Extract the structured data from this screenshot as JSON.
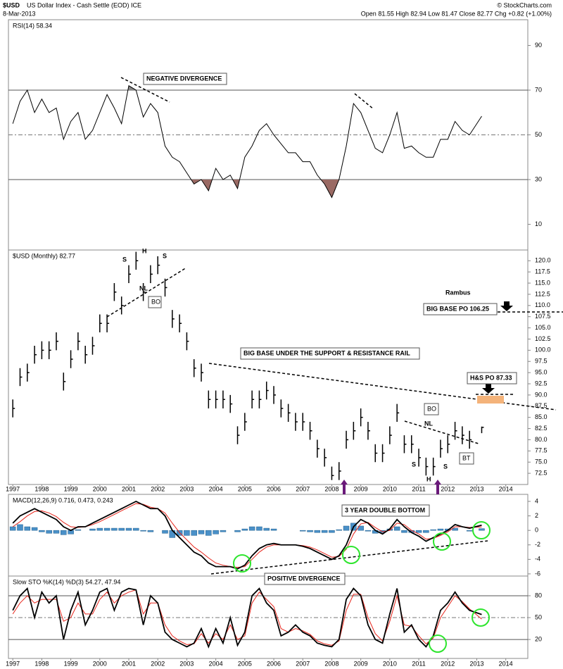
{
  "header": {
    "symbol": "$USD",
    "name": "US Dollar Index - Cash Settle (EOD) ICE",
    "date": "8-Mar-2013",
    "quote": "Open 81.55 High 82.94 Low 81.47 Close 82.77 Chg +0.82 (+1.00%)",
    "copyright": "© StockCharts.com"
  },
  "chart_data": [
    {
      "type": "line",
      "title": "RSI(14) 58.34",
      "color": "#000000",
      "levels": [
        30,
        50,
        70
      ],
      "ylim": [
        -1.5,
        101.5
      ],
      "yticks": [
        10,
        30,
        50,
        70,
        90
      ],
      "xlim": [
        1996.85,
        2014.76
      ],
      "annotations": [
        "NEGATIVE DIVERGENCE"
      ],
      "x": [
        1997,
        1997.25,
        1997.5,
        1997.75,
        1998,
        1998.25,
        1998.5,
        1998.75,
        1999,
        1999.25,
        1999.5,
        1999.75,
        2000,
        2000.25,
        2000.5,
        2000.75,
        2001,
        2001.25,
        2001.5,
        2001.75,
        2002,
        2002.25,
        2002.5,
        2002.75,
        2003,
        2003.25,
        2003.5,
        2003.75,
        2004,
        2004.25,
        2004.5,
        2004.75,
        2005,
        2005.25,
        2005.5,
        2005.75,
        2006,
        2006.25,
        2006.5,
        2006.75,
        2007,
        2007.25,
        2007.5,
        2007.75,
        2008,
        2008.25,
        2008.5,
        2008.75,
        2009,
        2009.25,
        2009.5,
        2009.75,
        2010,
        2010.25,
        2010.5,
        2010.75,
        2011,
        2011.25,
        2011.5,
        2011.75,
        2012,
        2012.25,
        2012.5,
        2012.75,
        2013.17
      ],
      "values": [
        55,
        65,
        70,
        60,
        66,
        60,
        62,
        48,
        56,
        60,
        48,
        52,
        60,
        68,
        62,
        55,
        72,
        70,
        58,
        64,
        60,
        45,
        40,
        38,
        33,
        28,
        30,
        25,
        35,
        30,
        32,
        26,
        40,
        45,
        52,
        55,
        50,
        46,
        42,
        42,
        38,
        38,
        32,
        28,
        22,
        30,
        45,
        64,
        60,
        52,
        44,
        42,
        50,
        60,
        44,
        45,
        42,
        40,
        40,
        48,
        48,
        56,
        52,
        50,
        58.34
      ]
    },
    {
      "type": "ohlc",
      "title": "$USD (Monthly) 82.77",
      "color": "#000000",
      "ylim": [
        70,
        122.4
      ],
      "xlim": [
        1996.85,
        2014.76
      ],
      "yticks": [
        {
          "value": 72.5,
          "label": "72.5"
        },
        {
          "value": 75,
          "label": "75.0"
        },
        {
          "value": 77.5,
          "label": "77.5"
        },
        {
          "value": 80,
          "label": "80.0"
        },
        {
          "value": 82.5,
          "label": "82.5"
        },
        {
          "value": 85,
          "label": "85.0"
        },
        {
          "value": 87.5,
          "label": "87.5"
        },
        {
          "value": 90,
          "label": "90.0"
        },
        {
          "value": 92.5,
          "label": "92.5"
        },
        {
          "value": 95,
          "label": "95.0"
        },
        {
          "value": 97.5,
          "label": "97.5"
        },
        {
          "value": 100,
          "label": "100.0"
        },
        {
          "value": 102.5,
          "label": "102.5"
        },
        {
          "value": 105,
          "label": "105.0"
        },
        {
          "value": 107.5,
          "label": "107.5"
        },
        {
          "value": 110,
          "label": "110.0"
        },
        {
          "value": 112.5,
          "label": "112.5"
        },
        {
          "value": 115,
          "label": "115.0"
        },
        {
          "value": 117.5,
          "label": "117.5"
        },
        {
          "value": 120,
          "label": "120.0"
        }
      ],
      "xticks": [
        1997,
        1998,
        1999,
        2000,
        2001,
        2002,
        2003,
        2004,
        2005,
        2006,
        2007,
        2008,
        2009,
        2010,
        2011,
        2012,
        2013,
        2014
      ],
      "annotations": [
        "BIG BASE UNDER THE SUPPORT & RESISTANCE RAIL",
        "H&S PO 87.33",
        "Rambus",
        "BIG BASE PO 106.25",
        "BO",
        "NL",
        "S",
        "H",
        "S",
        "BO",
        "NL",
        "S",
        "H",
        "S",
        "BT",
        "3 YEAR DOUBLE BOTTOM"
      ],
      "x": [
        1997,
        1997.25,
        1997.5,
        1997.75,
        1998,
        1998.25,
        1998.5,
        1998.75,
        1999,
        1999.25,
        1999.5,
        1999.75,
        2000,
        2000.25,
        2000.5,
        2000.75,
        2001,
        2001.25,
        2001.5,
        2001.75,
        2002,
        2002.25,
        2002.5,
        2002.75,
        2003,
        2003.25,
        2003.5,
        2003.75,
        2004,
        2004.25,
        2004.5,
        2004.75,
        2005,
        2005.25,
        2005.5,
        2005.75,
        2006,
        2006.25,
        2006.5,
        2006.75,
        2007,
        2007.25,
        2007.5,
        2007.75,
        2008,
        2008.25,
        2008.5,
        2008.75,
        2009,
        2009.25,
        2009.5,
        2009.75,
        2010,
        2010.25,
        2010.5,
        2010.75,
        2011,
        2011.25,
        2011.5,
        2011.75,
        2012,
        2012.25,
        2012.5,
        2012.75,
        2013.17
      ],
      "high": [
        89,
        96,
        97,
        101,
        102,
        102,
        104,
        95,
        100,
        104,
        101,
        103,
        108,
        108,
        115,
        112,
        119,
        122,
        115,
        119,
        121,
        116,
        109,
        108,
        104,
        98,
        97,
        91,
        91,
        91,
        90,
        83,
        86,
        91,
        91,
        93,
        92,
        89,
        88,
        86,
        86,
        84,
        80,
        78,
        74,
        75,
        82,
        84,
        87,
        84,
        79,
        79,
        83,
        88,
        81,
        81,
        78,
        76,
        76,
        80,
        81,
        84,
        83,
        82,
        82.94
      ],
      "low": [
        85,
        92,
        93,
        97,
        98,
        98,
        100,
        91,
        96,
        100,
        97,
        99,
        104,
        104,
        111,
        108,
        115,
        118,
        111,
        115,
        117,
        112,
        105,
        104,
        100,
        94,
        93,
        87,
        87,
        87,
        86,
        79,
        82,
        87,
        87,
        89,
        88,
        85,
        84,
        82,
        82,
        80,
        76,
        74,
        71,
        71,
        78,
        80,
        83,
        80,
        75,
        75,
        79,
        84,
        77,
        77,
        74,
        72,
        72,
        76,
        77,
        80,
        79,
        78,
        81.47
      ],
      "close": [
        87,
        94,
        95,
        99,
        100,
        100,
        102,
        93,
        98,
        102,
        99,
        101,
        106,
        106,
        113,
        110,
        117,
        120,
        113,
        117,
        119,
        114,
        107,
        106,
        102,
        96,
        95,
        89,
        89,
        89,
        88,
        81,
        84,
        89,
        89,
        91,
        90,
        87,
        86,
        84,
        84,
        82,
        78,
        76,
        72,
        73,
        80,
        82,
        85,
        82,
        77,
        77,
        81,
        86,
        79,
        79,
        76,
        74,
        74,
        78,
        79,
        82,
        81,
        80,
        82.77
      ]
    },
    {
      "type": "macd",
      "title": "MACD(12,26,9) 0.716, 0.473, 0.243",
      "ylim": [
        -6.3,
        4.97
      ],
      "yticks": [
        -6,
        -4,
        -2,
        0,
        2,
        4
      ],
      "xlim": [
        1996.85,
        2014.76
      ],
      "annotations": [
        "POSITIVE DIVERGENCE"
      ],
      "x": [
        1997,
        1997.25,
        1997.5,
        1997.75,
        1998,
        1998.25,
        1998.5,
        1998.75,
        1999,
        1999.25,
        1999.5,
        1999.75,
        2000,
        2000.25,
        2000.5,
        2000.75,
        2001,
        2001.25,
        2001.5,
        2001.75,
        2002,
        2002.25,
        2002.5,
        2002.75,
        2003,
        2003.25,
        2003.5,
        2003.75,
        2004,
        2004.25,
        2004.5,
        2004.75,
        2005,
        2005.25,
        2005.5,
        2005.75,
        2006,
        2006.25,
        2006.5,
        2006.75,
        2007,
        2007.25,
        2007.5,
        2007.75,
        2008,
        2008.25,
        2008.5,
        2008.75,
        2009,
        2009.25,
        2009.5,
        2009.75,
        2010,
        2010.25,
        2010.5,
        2010.75,
        2011,
        2011.25,
        2011.5,
        2011.75,
        2012,
        2012.25,
        2012.5,
        2012.75,
        2013.17
      ],
      "series": [
        {
          "name": "MACD",
          "color": "#000000",
          "values": [
            1,
            2,
            2.5,
            3,
            2.5,
            2,
            1.5,
            0.5,
            0,
            0.5,
            0.5,
            1,
            1.5,
            2,
            2.5,
            3,
            3.5,
            4,
            3.5,
            3,
            3,
            2,
            0,
            -1,
            -2,
            -3,
            -3.5,
            -4.5,
            -5,
            -5,
            -5,
            -5.3,
            -4.8,
            -3.5,
            -2.5,
            -2,
            -1.8,
            -2,
            -2,
            -2,
            -2.2,
            -2.5,
            -3,
            -3.5,
            -4,
            -3.5,
            -2,
            0.5,
            1.5,
            1,
            0,
            -0.5,
            0.2,
            1.5,
            0.5,
            -0.3,
            -0.8,
            -1.5,
            -1,
            -0.5,
            0,
            0.8,
            0.5,
            0.3,
            0.716
          ]
        },
        {
          "name": "Signal",
          "color": "#e8261c",
          "values": [
            0.5,
            1.2,
            2,
            2.6,
            2.7,
            2.4,
            1.9,
            1.1,
            0.5,
            0.4,
            0.5,
            0.8,
            1.2,
            1.7,
            2.2,
            2.7,
            3.2,
            3.7,
            3.6,
            3.2,
            3,
            2.4,
            1,
            -0.3,
            -1.3,
            -2.3,
            -3,
            -3.8,
            -4.5,
            -4.8,
            -5,
            -5.1,
            -5,
            -4,
            -3,
            -2.3,
            -2,
            -2,
            -2,
            -2,
            -2.1,
            -2.3,
            -2.7,
            -3.2,
            -3.7,
            -3.6,
            -2.6,
            -0.5,
            0.9,
            1.1,
            0.4,
            -0.2,
            0,
            1,
            0.8,
            0,
            -0.5,
            -1.2,
            -1.1,
            -0.7,
            -0.2,
            0.5,
            0.5,
            0.4,
            0.473
          ]
        },
        {
          "name": "Histogram",
          "color": "#4a90c8",
          "values": [
            0.5,
            0.8,
            0.5,
            0.4,
            -0.2,
            -0.4,
            -0.4,
            -0.6,
            -0.5,
            0.1,
            0,
            0.2,
            0.3,
            0.3,
            0.3,
            0.3,
            0.3,
            0.3,
            -0.1,
            -0.2,
            0,
            -0.4,
            -1,
            -0.7,
            -0.7,
            -0.7,
            -0.5,
            -0.7,
            -0.5,
            -0.2,
            0,
            -0.2,
            0.2,
            0.5,
            0.5,
            0.3,
            0.2,
            0,
            0,
            0,
            -0.1,
            -0.2,
            -0.3,
            -0.3,
            -0.3,
            0.1,
            0.6,
            1,
            0.6,
            -0.1,
            -0.4,
            -0.3,
            0.2,
            0.5,
            -0.3,
            -0.3,
            -0.3,
            -0.3,
            0.1,
            0.2,
            0.2,
            0.3,
            0,
            -0.1,
            0.243
          ]
        }
      ]
    },
    {
      "type": "stochastic",
      "title": "Slow STO %K(14) %D(3) 54.27, 47.94",
      "levels": [
        20,
        50,
        80
      ],
      "ylim": [
        -6,
        107
      ],
      "yticks": [
        20,
        50,
        80
      ],
      "xlim": [
        1996.85,
        2014.76
      ],
      "xticks": [
        1997,
        1998,
        1999,
        2000,
        2001,
        2002,
        2003,
        2004,
        2005,
        2006,
        2007,
        2008,
        2009,
        2010,
        2011,
        2012,
        2013,
        2014
      ],
      "x": [
        1997,
        1997.25,
        1997.5,
        1997.75,
        1998,
        1998.25,
        1998.5,
        1998.75,
        1999,
        1999.25,
        1999.5,
        1999.75,
        2000,
        2000.25,
        2000.5,
        2000.75,
        2001,
        2001.25,
        2001.5,
        2001.75,
        2002,
        2002.25,
        2002.5,
        2002.75,
        2003,
        2003.25,
        2003.5,
        2003.75,
        2004,
        2004.25,
        2004.5,
        2004.75,
        2005,
        2005.25,
        2005.5,
        2005.75,
        2006,
        2006.25,
        2006.5,
        2006.75,
        2007,
        2007.25,
        2007.5,
        2007.75,
        2008,
        2008.25,
        2008.5,
        2008.75,
        2009,
        2009.25,
        2009.5,
        2009.75,
        2010,
        2010.25,
        2010.5,
        2010.75,
        2011,
        2011.25,
        2011.5,
        2011.75,
        2012,
        2012.25,
        2012.5,
        2012.75,
        2013.17
      ],
      "series": [
        {
          "name": "%K",
          "color": "#000000",
          "values": [
            60,
            80,
            90,
            50,
            85,
            70,
            80,
            20,
            60,
            85,
            40,
            60,
            85,
            90,
            60,
            85,
            90,
            88,
            40,
            80,
            70,
            30,
            20,
            15,
            10,
            15,
            35,
            10,
            35,
            15,
            50,
            12,
            30,
            80,
            90,
            70,
            60,
            25,
            30,
            40,
            30,
            25,
            15,
            12,
            10,
            20,
            75,
            90,
            80,
            40,
            20,
            15,
            55,
            90,
            30,
            40,
            20,
            10,
            25,
            60,
            70,
            85,
            70,
            60,
            54.27
          ]
        },
        {
          "name": "%D",
          "color": "#e8261c",
          "values": [
            55,
            70,
            80,
            70,
            75,
            75,
            75,
            45,
            50,
            70,
            55,
            55,
            75,
            85,
            70,
            80,
            85,
            88,
            55,
            70,
            70,
            40,
            25,
            18,
            13,
            14,
            28,
            15,
            28,
            20,
            40,
            20,
            25,
            70,
            85,
            75,
            65,
            35,
            30,
            35,
            32,
            27,
            18,
            14,
            12,
            18,
            60,
            82,
            82,
            50,
            28,
            18,
            45,
            80,
            40,
            38,
            25,
            14,
            22,
            50,
            65,
            80,
            72,
            62,
            47.94
          ]
        }
      ]
    }
  ]
}
